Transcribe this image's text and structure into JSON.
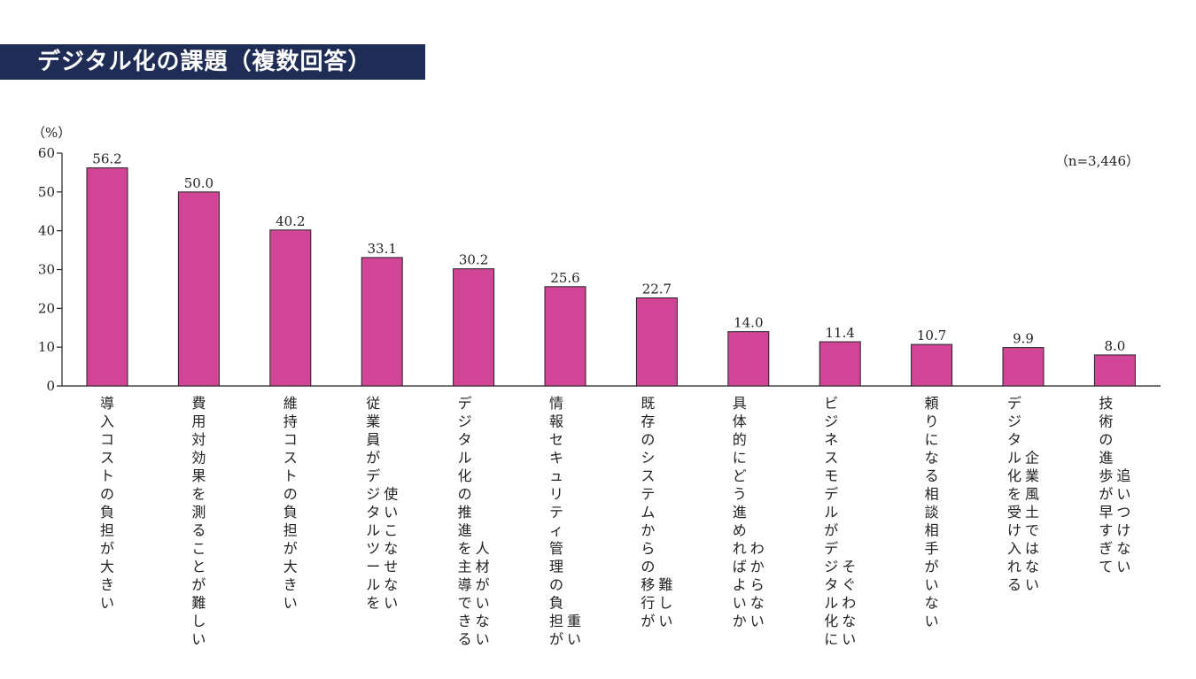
{
  "title": "デジタル化の課題（複数回答）",
  "unit_label": "（%）",
  "n_label": "（n=3,446）",
  "colors": {
    "bar": "#d14596",
    "title_bg": "#1f2c56"
  },
  "chart_data": {
    "type": "bar",
    "title": "デジタル化の課題（複数回答）",
    "ylabel": "（%）",
    "ylim": [
      0,
      60
    ],
    "yticks": [
      0,
      10,
      20,
      30,
      40,
      50,
      60
    ],
    "grid": false,
    "categories": [
      "導入コストの負担が大きい",
      "費用対効果を測ることが難しい",
      "維持コストの負担が大きい",
      "従業員がデジタルツールを使いこなせない",
      "デジタル化の推進を主導できる人材がいない",
      "情報セキュリティ管理の負担が重い",
      "既存のシステムからの移行が難しい",
      "具体的にどう進めればよいかわからない",
      "ビジネスモデルがデジタル化にそぐわない",
      "頼りになる相談相手がいない",
      "デジタル化を受け入れる企業風土ではない",
      "技術の進歩が早すぎて追いつけない"
    ],
    "category_lines": [
      [
        "導入コストの負担が大きい"
      ],
      [
        "費用対効果を測ることが難しい"
      ],
      [
        "維持コストの負担が大きい"
      ],
      [
        "従業員がデジタルツールを",
        "使いこなせない"
      ],
      [
        "デジタル化の推進を主導できる",
        "人材がいない"
      ],
      [
        "情報セキュリティ管理の負担が",
        "重い"
      ],
      [
        "既存のシステムからの移行が",
        "難しい"
      ],
      [
        "具体的にどう進めればよいか",
        "わからない"
      ],
      [
        "ビジネスモデルがデジタル化に",
        "そぐわない"
      ],
      [
        "頼りになる相談相手がいない"
      ],
      [
        "デジタル化を受け入れる",
        "企業風土ではない"
      ],
      [
        "技術の進歩が早すぎて",
        "追いつけない"
      ]
    ],
    "values": [
      56.2,
      50.0,
      40.2,
      33.1,
      30.2,
      25.6,
      22.7,
      14.0,
      11.4,
      10.7,
      9.9,
      8.0
    ],
    "value_labels": [
      "56.2",
      "50.0",
      "40.2",
      "33.1",
      "30.2",
      "25.6",
      "22.7",
      "14.0",
      "11.4",
      "10.7",
      "9.9",
      "8.0"
    ]
  }
}
